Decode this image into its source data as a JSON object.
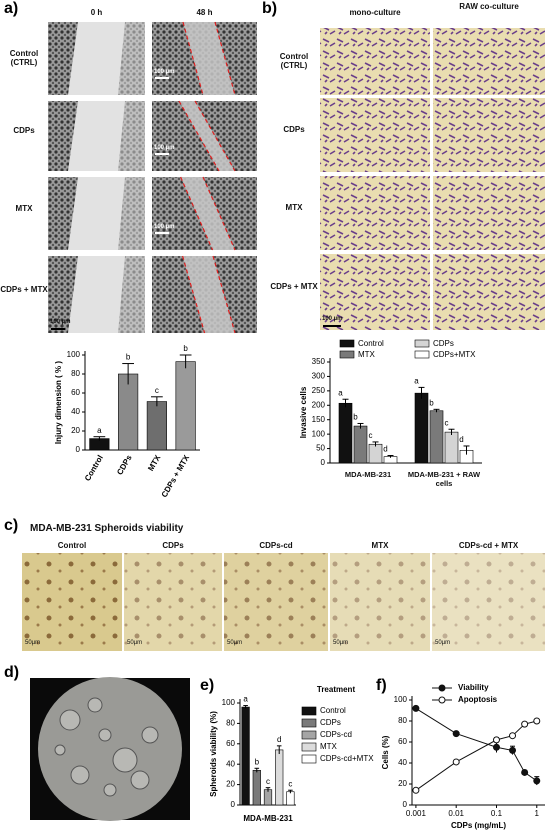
{
  "figure": {
    "panel_a": {
      "label": "a)",
      "columns": [
        "0 h",
        "48 h"
      ],
      "rows": [
        "Control (CTRL)",
        "CDPs",
        "MTX",
        "CDPs + MTX"
      ],
      "scale_bar": "100 µm"
    },
    "panel_b": {
      "label": "b)",
      "columns": [
        "mono-culture",
        "RAW co-culture"
      ],
      "rows": [
        "Control (CTRL)",
        "CDPs",
        "MTX",
        "CDPs + MTX"
      ],
      "scale_bar": "100 µm"
    },
    "panel_c": {
      "label": "c)",
      "title": "MDA-MB-231 Spheroids viability",
      "columns": [
        "Control",
        "CDPs",
        "CDPs-cd",
        "MTX",
        "CDPs-cd + MTX"
      ],
      "scale_bar": "50µm"
    },
    "panel_d": {
      "label": "d)"
    },
    "panel_e": {
      "label": "e)"
    },
    "panel_f": {
      "label": "f)"
    }
  },
  "chart_data": [
    {
      "type": "bar",
      "ylabel": "Injury dimension ( % )",
      "categories": [
        "Control",
        "CDPs",
        "MTX",
        "CDPs + MTX"
      ],
      "values": [
        12,
        80,
        51,
        93
      ],
      "errors": [
        2,
        11,
        5,
        7
      ],
      "letters": [
        "a",
        "b",
        "c",
        "b"
      ],
      "colors": [
        "#111111",
        "#8a8a8a",
        "#6e6e6e",
        "#9a9a9a"
      ],
      "ylim": [
        0,
        100
      ],
      "yticks": [
        0,
        20,
        40,
        60,
        80,
        100
      ]
    },
    {
      "type": "grouped_bar",
      "ylabel": "Invasive cells",
      "categories": [
        "MDA-MB-231",
        "MDA-MB-231 + RAW cells"
      ],
      "series": [
        {
          "name": "Control",
          "color": "#111111",
          "values": [
            207,
            242
          ],
          "errors": [
            14,
            20
          ],
          "letters": [
            "a",
            "a"
          ]
        },
        {
          "name": "MTX",
          "color": "#7a7a7a",
          "values": [
            128,
            181
          ],
          "errors": [
            9,
            5
          ],
          "letters": [
            "b",
            "b"
          ]
        },
        {
          "name": "CDPs",
          "color": "#d4d4d4",
          "values": [
            65,
            107
          ],
          "errors": [
            8,
            10
          ],
          "letters": [
            "c",
            "c"
          ]
        },
        {
          "name": "CDPs+MTX",
          "color": "#ffffff",
          "values": [
            22,
            44
          ],
          "errors": [
            4,
            15
          ],
          "letters": [
            "d",
            "d"
          ]
        }
      ],
      "ylim": [
        0,
        350
      ],
      "yticks": [
        0,
        50,
        100,
        150,
        200,
        250,
        300,
        350
      ]
    },
    {
      "type": "bar",
      "ylabel": "Spheroids viability (%)",
      "xlabel": "MDA-MB-231",
      "legend_title": "Treatment",
      "legend_position": "right",
      "categories": [
        "Control",
        "CDPs",
        "CDPs-cd",
        "MTX",
        "CDPs-cd+MTX"
      ],
      "values": [
        96,
        34,
        15,
        54,
        13
      ],
      "errors": [
        1.5,
        2,
        2,
        4,
        1.5
      ],
      "letters": [
        "a",
        "b",
        "c",
        "d",
        "c"
      ],
      "colors": [
        "#111111",
        "#7a7a7a",
        "#a5a5a5",
        "#dcdcdc",
        "#ffffff"
      ],
      "ylim": [
        0,
        100
      ],
      "yticks": [
        0,
        20,
        40,
        60,
        80,
        100
      ]
    },
    {
      "type": "line",
      "ylabel": "Cells (%)",
      "xlabel": "CDPs (mg/mL)",
      "log_x": true,
      "legend_position": "top",
      "x": [
        0.001,
        0.01,
        0.1,
        0.25,
        0.5,
        1
      ],
      "series": [
        {
          "name": "Viability",
          "color": "#111111",
          "marker": "filled",
          "values": [
            92,
            68,
            55,
            52,
            31,
            23
          ],
          "errors": [
            1,
            1,
            5,
            4,
            2,
            4
          ]
        },
        {
          "name": "Apoptosis",
          "color": "#111111",
          "marker": "open",
          "values": [
            14,
            41,
            62,
            66,
            77,
            80
          ],
          "errors": [
            1,
            1,
            2,
            2,
            1,
            1
          ]
        }
      ],
      "xlim": [
        0.0008,
        1.6
      ],
      "xticks": [
        0.001,
        0.01,
        0.1,
        1
      ],
      "ylim": [
        0,
        100
      ],
      "yticks": [
        0,
        20,
        40,
        60,
        80,
        100
      ]
    }
  ]
}
